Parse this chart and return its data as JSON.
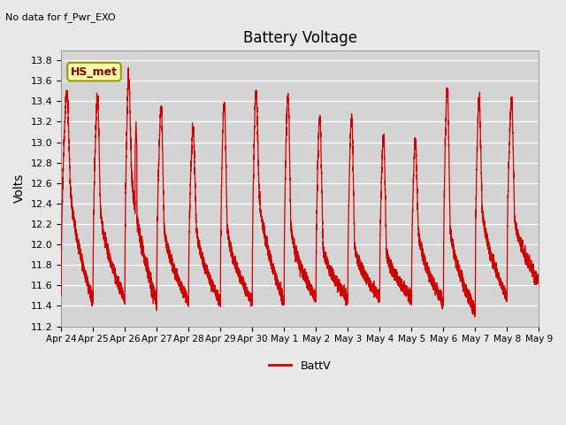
{
  "title": "Battery Voltage",
  "subtitle": "No data for f_Pwr_EXO",
  "ylabel": "Volts",
  "legend_label": "BattV",
  "line_color": "#cc0000",
  "background_color": "#e8e8e8",
  "plot_bg_color": "#d4d4d4",
  "ylim": [
    11.2,
    13.9
  ],
  "yticks": [
    11.2,
    11.4,
    11.6,
    11.8,
    12.0,
    12.2,
    12.4,
    12.6,
    12.8,
    13.0,
    13.2,
    13.4,
    13.6,
    13.8
  ],
  "xtick_labels": [
    "Apr 24",
    "Apr 25",
    "Apr 26",
    "Apr 27",
    "Apr 28",
    "Apr 29",
    "Apr 30",
    "May 1",
    "May 2",
    "May 3",
    "May 4",
    "May 5",
    "May 6",
    "May 7",
    "May 8",
    "May 9"
  ],
  "hs_met_label": "HS_met",
  "hs_met_box_facecolor": "#ffffaa",
  "hs_met_box_edgecolor": "#999900",
  "hs_met_text_color": "#880000",
  "n_days": 15,
  "figwidth": 6.4,
  "figheight": 4.8,
  "dpi": 100
}
